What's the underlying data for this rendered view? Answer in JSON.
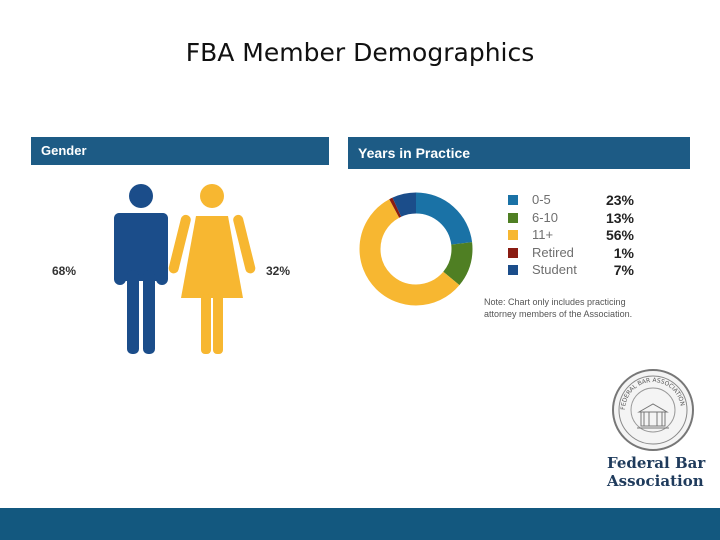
{
  "title": "FBA Member Demographics",
  "gender_panel": {
    "header": "Gender",
    "male_pct": "68%",
    "female_pct": "32%",
    "male_color": "#1b4d8a",
    "female_color": "#f7b731"
  },
  "years_panel": {
    "header": "Years in Practice",
    "note_line1": "Note: Chart only includes practicing",
    "note_line2": "attorney members of the Association."
  },
  "logo": {
    "org_line1": "Federal Bar",
    "org_line2": "Association",
    "seal_text": "FEDERAL BAR ASSOCIATION"
  },
  "chart_data": [
    {
      "type": "pie",
      "title": "Gender",
      "categories": [],
      "values": [
        68,
        32
      ],
      "labels": [
        "68%",
        "32%"
      ],
      "colors": [
        "#1b4d8a",
        "#f7b731"
      ]
    },
    {
      "type": "pie",
      "title": "Years in Practice",
      "categories": [
        "0-5",
        "6-10",
        "11+",
        "Retired",
        "Student"
      ],
      "values": [
        23,
        13,
        56,
        1,
        7
      ],
      "labels": [
        "23%",
        "13%",
        "56%",
        "1%",
        "7%"
      ],
      "colors": [
        "#1a72a6",
        "#4f7f23",
        "#f7b731",
        "#8a1c12",
        "#1b4d8a"
      ],
      "legend": "right"
    }
  ]
}
